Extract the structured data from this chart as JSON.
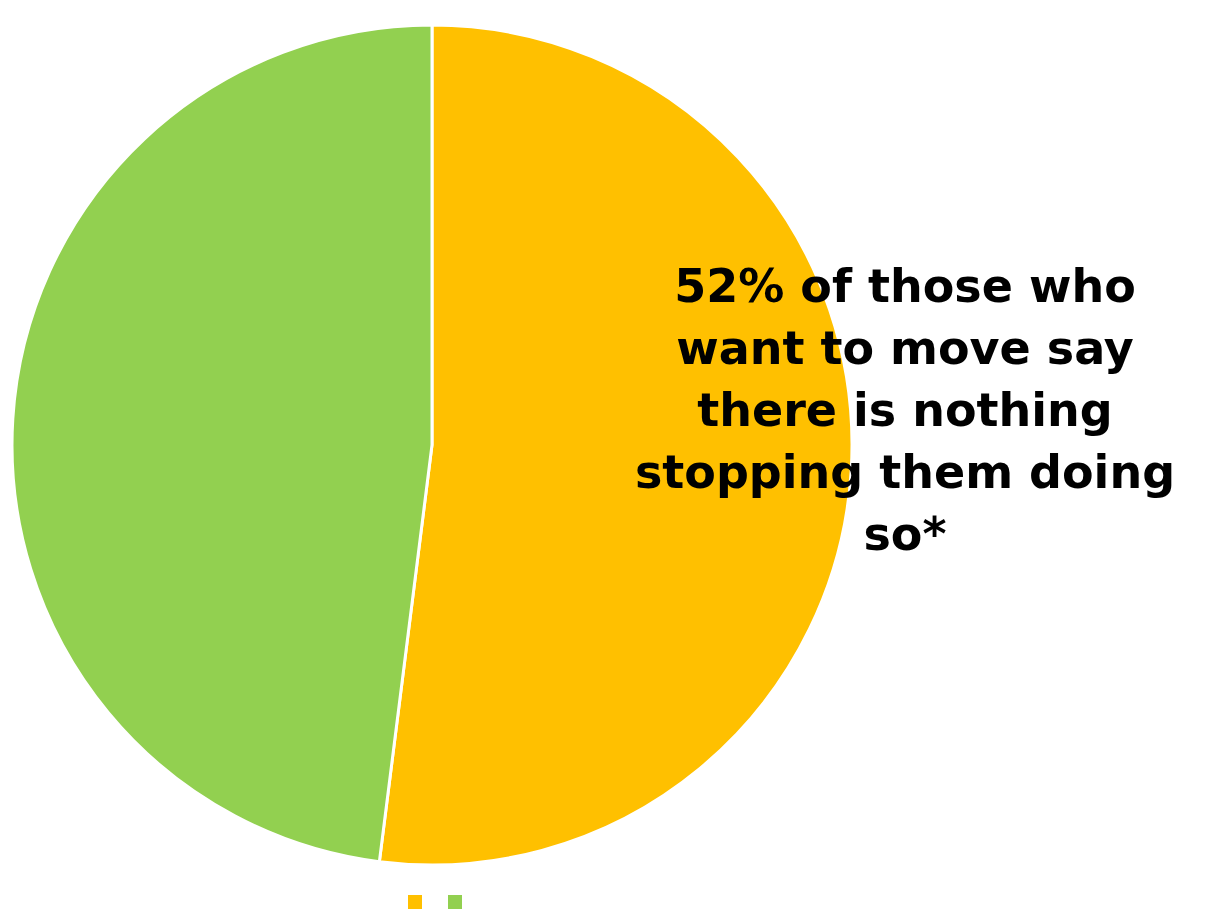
{
  "chart_data": {
    "type": "pie",
    "categories": [
      null,
      null
    ],
    "values": [
      52,
      48
    ],
    "colors": [
      "#ffc000",
      "#92d050"
    ],
    "annotations": [
      "52% of those who want to move say there is nothing stopping them doing so*"
    ]
  }
}
